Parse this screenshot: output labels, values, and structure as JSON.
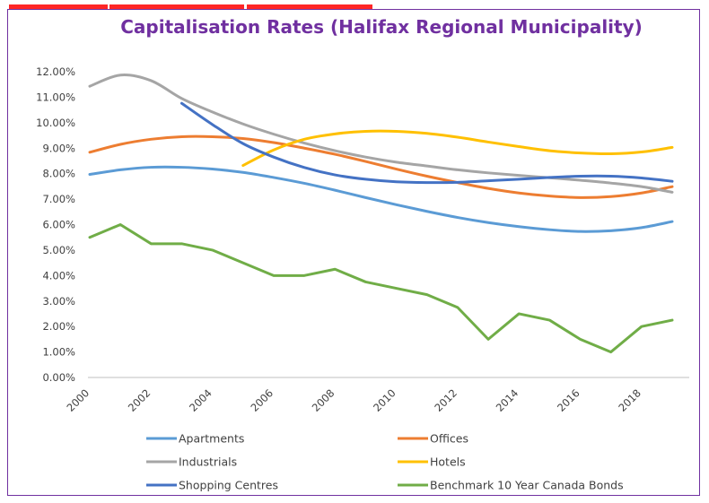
{
  "chart_data": {
    "type": "line",
    "title": "Capitalisation Rates (Halifax Regional Municipality)",
    "xlabel": "",
    "ylabel": "",
    "ylim": [
      0,
      0.12
    ],
    "xlim": [
      2000,
      2019
    ],
    "y_ticks": [
      "0.00%",
      "1.00%",
      "2.00%",
      "3.00%",
      "4.00%",
      "5.00%",
      "6.00%",
      "7.00%",
      "8.00%",
      "9.00%",
      "10.00%",
      "11.00%",
      "12.00%"
    ],
    "x_ticks": [
      "2000",
      "2002",
      "2004",
      "2006",
      "2008",
      "2010",
      "2012",
      "2014",
      "2016",
      "2018"
    ],
    "grid": false,
    "legend_position": "bottom",
    "series": [
      {
        "name": "Apartments",
        "color": "#5b9bd5",
        "x": [
          2000,
          2001,
          2002,
          2003,
          2004,
          2005,
          2006,
          2007,
          2008,
          2009,
          2010,
          2011,
          2012,
          2013,
          2014,
          2015,
          2016,
          2017,
          2018,
          2019
        ],
        "y": [
          0.0797,
          0.0815,
          0.0825,
          0.0825,
          0.0818,
          0.0805,
          0.0785,
          0.0762,
          0.0735,
          0.0706,
          0.0678,
          0.0652,
          0.0628,
          0.0608,
          0.0592,
          0.058,
          0.0573,
          0.0576,
          0.0588,
          0.0612
        ]
      },
      {
        "name": "Offices",
        "color": "#ed7d31",
        "x": [
          2000,
          2001,
          2002,
          2003,
          2004,
          2005,
          2006,
          2007,
          2008,
          2009,
          2010,
          2011,
          2012,
          2013,
          2014,
          2015,
          2016,
          2017,
          2018,
          2019
        ],
        "y": [
          0.0884,
          0.0915,
          0.0935,
          0.0945,
          0.0945,
          0.0938,
          0.0922,
          0.09,
          0.0876,
          0.0848,
          0.0818,
          0.079,
          0.0765,
          0.0742,
          0.0724,
          0.0712,
          0.0706,
          0.071,
          0.0724,
          0.0749
        ]
      },
      {
        "name": "Industrials",
        "color": "#a5a5a5",
        "x": [
          2000,
          2001,
          2002,
          2003,
          2004,
          2005,
          2006,
          2007,
          2008,
          2009,
          2010,
          2011,
          2012,
          2013,
          2014,
          2015,
          2016,
          2017,
          2018,
          2019
        ],
        "y": [
          0.1143,
          0.1187,
          0.1165,
          0.1095,
          0.1042,
          0.0995,
          0.0955,
          0.092,
          0.089,
          0.0865,
          0.0845,
          0.083,
          0.0815,
          0.0803,
          0.0793,
          0.0784,
          0.0774,
          0.0763,
          0.0749,
          0.0727
        ]
      },
      {
        "name": "Hotels",
        "color": "#ffc000",
        "x": [
          2005,
          2006,
          2007,
          2008,
          2009,
          2010,
          2011,
          2012,
          2013,
          2014,
          2015,
          2016,
          2017,
          2018,
          2019
        ],
        "y": [
          0.0832,
          0.0893,
          0.0935,
          0.0956,
          0.0966,
          0.0966,
          0.0958,
          0.0943,
          0.0924,
          0.0906,
          0.089,
          0.0881,
          0.0878,
          0.0885,
          0.0903
        ]
      },
      {
        "name": "Shopping Centres",
        "color": "#4472c4",
        "x": [
          2003,
          2004,
          2005,
          2006,
          2007,
          2008,
          2009,
          2010,
          2011,
          2012,
          2013,
          2014,
          2015,
          2016,
          2017,
          2018,
          2019
        ],
        "y": [
          0.1076,
          0.0993,
          0.0918,
          0.0865,
          0.0824,
          0.0795,
          0.0778,
          0.0768,
          0.0765,
          0.0766,
          0.0772,
          0.0778,
          0.0785,
          0.079,
          0.079,
          0.0783,
          0.077
        ]
      },
      {
        "name": "Benchmark 10 Year Canada Bonds",
        "color": "#70ad47",
        "x": [
          2000,
          2001,
          2002,
          2003,
          2004,
          2005,
          2006,
          2007,
          2008,
          2009,
          2010,
          2011,
          2012,
          2013,
          2014,
          2015,
          2016,
          2017,
          2018,
          2019
        ],
        "y": [
          0.055,
          0.06,
          0.0525,
          0.0525,
          0.05,
          0.045,
          0.04,
          0.04,
          0.0425,
          0.0375,
          0.035,
          0.0325,
          0.0275,
          0.015,
          0.025,
          0.0225,
          0.015,
          0.01,
          0.02,
          0.0225
        ]
      }
    ]
  }
}
